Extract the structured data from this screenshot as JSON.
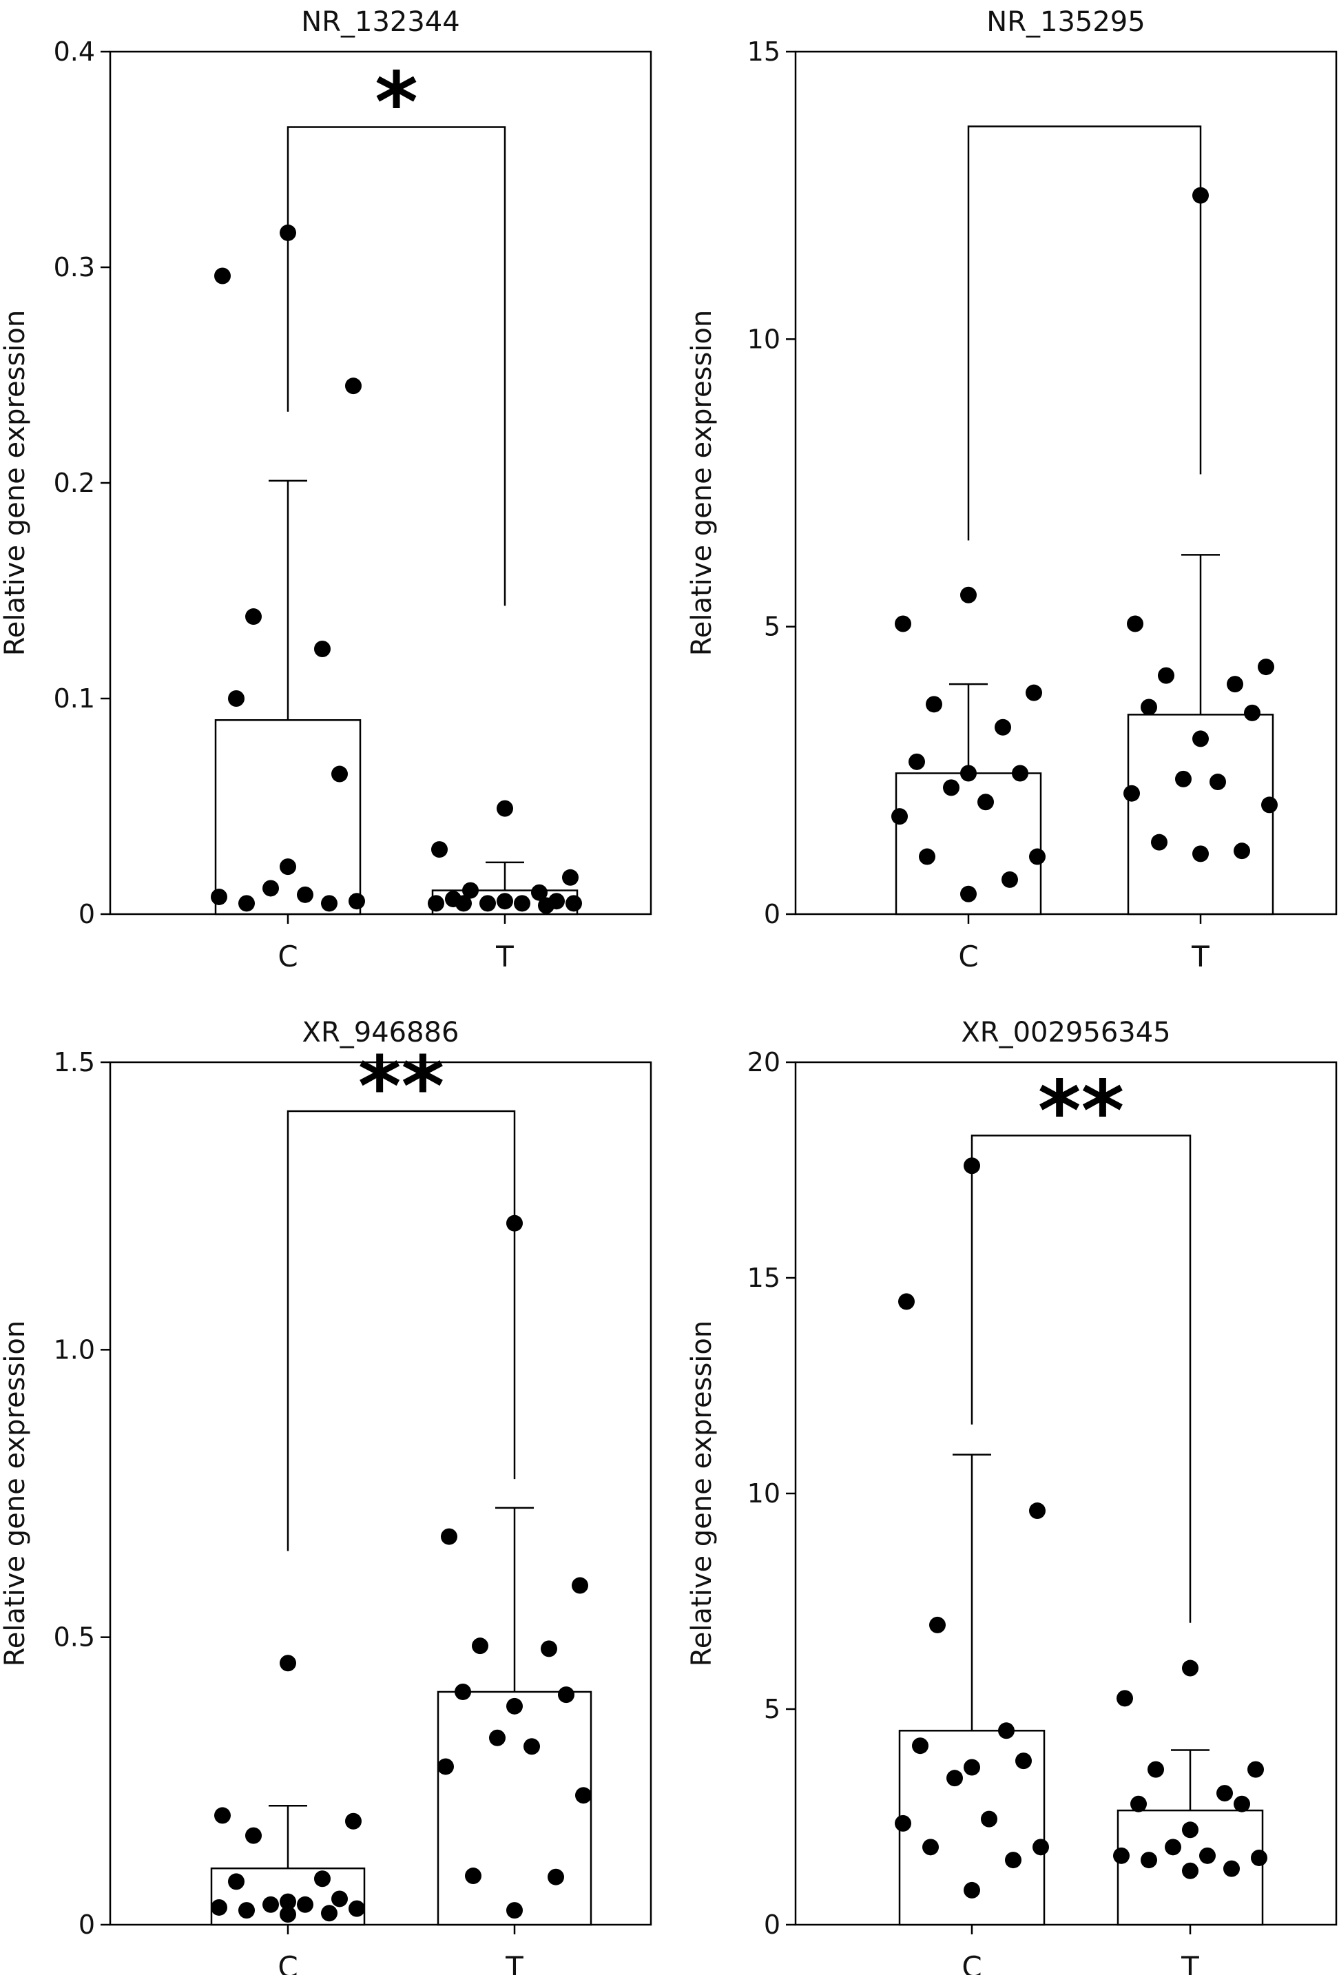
{
  "chart_data": [
    {
      "type": "bar",
      "title": "NR_132344",
      "ylabel": "Relative gene expression",
      "xlabel": "",
      "categories": [
        "C",
        "T"
      ],
      "ylim": [
        0,
        0.4
      ],
      "yticks": [
        "0",
        "0.1",
        "0.2",
        "0.3",
        "0.4"
      ],
      "ytick_values": [
        0,
        0.1,
        0.2,
        0.3,
        0.4
      ],
      "values": [
        0.09,
        0.011
      ],
      "error_upper": [
        0.201,
        0.024
      ],
      "points": [
        [
          0.316,
          0.296,
          0.245,
          0.138,
          0.123,
          0.1,
          0.065,
          0.022,
          0.012,
          0.009,
          0.008,
          0.006,
          0.005,
          0.005
        ],
        [
          0.049,
          0.03,
          0.017,
          0.011,
          0.01,
          0.007,
          0.006,
          0.006,
          0.005,
          0.005,
          0.005,
          0.005,
          0.005,
          0.004
        ]
      ],
      "significance": "*",
      "bracket_y": 0.365,
      "bracket_bottom": [
        0.233,
        0.143
      ]
    },
    {
      "type": "bar",
      "title": "NR_135295",
      "ylabel": "Relative gene expression",
      "xlabel": "",
      "categories": [
        "C",
        "T"
      ],
      "ylim": [
        0,
        15
      ],
      "yticks": [
        "0",
        "5",
        "10",
        "15"
      ],
      "ytick_values": [
        0,
        5,
        10,
        15
      ],
      "values": [
        2.45,
        3.47
      ],
      "error_upper": [
        4.0,
        6.25
      ],
      "points": [
        [
          5.55,
          5.05,
          3.85,
          3.65,
          3.25,
          2.65,
          2.45,
          2.45,
          2.2,
          1.95,
          1.7,
          1.0,
          1.0,
          0.6,
          0.35
        ],
        [
          12.5,
          5.05,
          4.3,
          4.15,
          4.0,
          3.6,
          3.5,
          3.05,
          2.35,
          2.3,
          2.1,
          1.9,
          1.25,
          1.1,
          1.05
        ]
      ],
      "significance": "",
      "bracket_y": 13.7,
      "bracket_bottom": [
        6.5,
        7.65
      ]
    },
    {
      "type": "bar",
      "title": "XR_946886",
      "ylabel": "Relative gene expression",
      "xlabel": "",
      "categories": [
        "C",
        "T"
      ],
      "ylim": [
        0,
        1.5
      ],
      "yticks": [
        "0",
        "0.5",
        "1.0",
        "1.5"
      ],
      "ytick_values": [
        0,
        0.5,
        1.0,
        1.5
      ],
      "values": [
        0.098,
        0.405
      ],
      "error_upper": [
        0.207,
        0.725
      ],
      "points": [
        [
          0.455,
          0.19,
          0.18,
          0.155,
          0.08,
          0.075,
          0.045,
          0.04,
          0.035,
          0.035,
          0.03,
          0.028,
          0.025,
          0.02,
          0.018
        ],
        [
          1.22,
          0.675,
          0.59,
          0.485,
          0.48,
          0.405,
          0.4,
          0.38,
          0.325,
          0.31,
          0.275,
          0.225,
          0.085,
          0.083,
          0.025
        ]
      ],
      "significance": "**",
      "bracket_y": 1.415,
      "bracket_bottom": [
        0.65,
        0.775
      ]
    },
    {
      "type": "bar",
      "title": "XR_002956345",
      "ylabel": "Relative gene expression",
      "xlabel": "",
      "categories": [
        "C",
        "T"
      ],
      "ylim": [
        0,
        20
      ],
      "yticks": [
        "0",
        "5",
        "10",
        "15",
        "20"
      ],
      "ytick_values": [
        0,
        5,
        10,
        15,
        20
      ],
      "values": [
        4.5,
        2.65
      ],
      "error_upper": [
        10.9,
        4.05
      ],
      "points": [
        [
          17.6,
          14.45,
          9.6,
          6.95,
          4.5,
          4.15,
          3.8,
          3.65,
          3.4,
          2.45,
          2.35,
          1.8,
          1.8,
          1.5,
          0.8
        ],
        [
          5.95,
          5.25,
          3.6,
          3.6,
          3.05,
          2.8,
          2.8,
          2.2,
          1.8,
          1.6,
          1.6,
          1.55,
          1.5,
          1.3,
          1.25
        ]
      ],
      "significance": "**",
      "bracket_y": 18.3,
      "bracket_bottom": [
        11.6,
        7.0
      ]
    }
  ]
}
